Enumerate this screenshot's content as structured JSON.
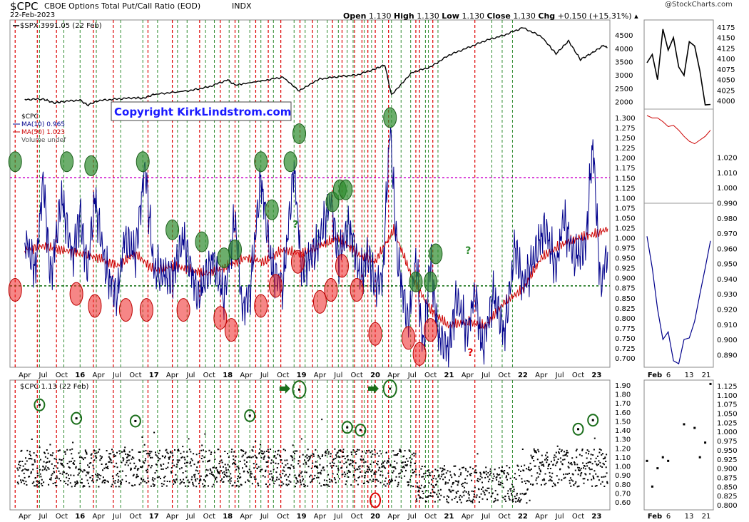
{
  "header": {
    "symbol": "$CPC",
    "description": "CBOE Options Total Put/Call Ratio (EOD)",
    "exchange": "INDX",
    "date": "22-Feb-2023",
    "credit": "@StockCharts.com",
    "open_label": "Open",
    "open": "1.130",
    "high_label": "High",
    "high": "1.130",
    "low_label": "Low",
    "low": "1.130",
    "close_label": "Close",
    "close": "1.130",
    "chg_label": "Chg",
    "chg": "+0.150 (+15.31%)"
  },
  "copyright": "Copyright KirkLindstrom.com",
  "legend": {
    "spx": "$SPX 3991.05 (22 Feb)",
    "cpc": "$CPC",
    "ma10": "MA(10) 0.965",
    "ma50": "MA(50) 1.023",
    "volume": "Volume undef",
    "scatter": "$CPC 1.13 (22 Feb)"
  },
  "colors": {
    "spx": "#000000",
    "cpc": "#00008b",
    "ma50": "#cc0000",
    "scatter": "#000000",
    "high_line": "#cc00cc",
    "low_line": "#006400",
    "green_marker": "#2e8b2e",
    "red_marker": "#ee2222",
    "copyright": "#1a1aff"
  },
  "x_ticks": [
    "Apr",
    "Jul",
    "Oct",
    "16",
    "Apr",
    "Jul",
    "Oct",
    "17",
    "Apr",
    "Jul",
    "Oct",
    "18",
    "Apr",
    "Jul",
    "Oct",
    "19",
    "Apr",
    "Jul",
    "Oct",
    "20",
    "Apr",
    "Jul",
    "Oct",
    "21",
    "Apr",
    "Jul",
    "Oct",
    "22",
    "Apr",
    "Jul",
    "Oct",
    "23"
  ],
  "side_x_ticks": [
    "Feb",
    "6",
    "13",
    "21"
  ],
  "question_marks": [
    "?",
    "?",
    "?"
  ],
  "chart_data": [
    {
      "type": "line",
      "panel": "SPX price overlay",
      "series_name": "$SPX",
      "points": [
        [
          2015.25,
          2080
        ],
        [
          2015.5,
          2100
        ],
        [
          2015.65,
          1950
        ],
        [
          2015.75,
          2000
        ],
        [
          2016.0,
          2060
        ],
        [
          2016.1,
          1870
        ],
        [
          2016.25,
          2040
        ],
        [
          2016.5,
          2100
        ],
        [
          2016.75,
          2150
        ],
        [
          2016.85,
          2120
        ],
        [
          2017.0,
          2270
        ],
        [
          2017.5,
          2420
        ],
        [
          2017.75,
          2560
        ],
        [
          2018.0,
          2820
        ],
        [
          2018.1,
          2620
        ],
        [
          2018.5,
          2800
        ],
        [
          2018.75,
          2920
        ],
        [
          2018.97,
          2400
        ],
        [
          2019.25,
          2850
        ],
        [
          2019.5,
          2940
        ],
        [
          2019.75,
          3000
        ],
        [
          2020.0,
          3230
        ],
        [
          2020.13,
          3380
        ],
        [
          2020.22,
          2240
        ],
        [
          2020.5,
          3100
        ],
        [
          2020.75,
          3300
        ],
        [
          2021.0,
          3750
        ],
        [
          2021.25,
          4020
        ],
        [
          2021.5,
          4300
        ],
        [
          2021.75,
          4500
        ],
        [
          2022.0,
          4780
        ],
        [
          2022.25,
          4450
        ],
        [
          2022.45,
          3800
        ],
        [
          2022.62,
          4280
        ],
        [
          2022.78,
          3580
        ],
        [
          2022.95,
          3850
        ],
        [
          2023.1,
          4120
        ],
        [
          2023.15,
          3991
        ]
      ],
      "y_ticks": [
        "4500",
        "4000",
        "3500",
        "3000",
        "2500",
        "2000"
      ]
    },
    {
      "type": "line",
      "panel": "Put/Call ratio with moving averages",
      "series": [
        {
          "name": "MA(10)",
          "points": [
            [
              2015.25,
              1.0
            ],
            [
              2015.4,
              0.92
            ],
            [
              2015.5,
              1.15
            ],
            [
              2015.6,
              0.9
            ],
            [
              2015.75,
              1.1
            ],
            [
              2015.9,
              0.95
            ],
            [
              2016.0,
              1.06
            ],
            [
              2016.1,
              0.92
            ],
            [
              2016.2,
              1.1
            ],
            [
              2016.35,
              0.92
            ],
            [
              2016.5,
              0.85
            ],
            [
              2016.6,
              1.0
            ],
            [
              2016.75,
              0.96
            ],
            [
              2016.88,
              1.18
            ],
            [
              2017.0,
              0.92
            ],
            [
              2017.25,
              0.9
            ],
            [
              2017.4,
              1.0
            ],
            [
              2017.6,
              0.85
            ],
            [
              2017.8,
              0.95
            ],
            [
              2017.95,
              0.85
            ],
            [
              2018.1,
              1.05
            ],
            [
              2018.2,
              0.82
            ],
            [
              2018.3,
              0.86
            ],
            [
              2018.45,
              1.15
            ],
            [
              2018.6,
              0.92
            ],
            [
              2018.75,
              0.88
            ],
            [
              2018.9,
              1.18
            ],
            [
              2019.0,
              0.92
            ],
            [
              2019.2,
              0.97
            ],
            [
              2019.4,
              1.1
            ],
            [
              2019.5,
              0.95
            ],
            [
              2019.65,
              1.03
            ],
            [
              2019.8,
              0.9
            ],
            [
              2019.9,
              0.96
            ],
            [
              2020.0,
              0.88
            ],
            [
              2020.1,
              0.9
            ],
            [
              2020.2,
              1.28
            ],
            [
              2020.3,
              0.95
            ],
            [
              2020.45,
              0.78
            ],
            [
              2020.55,
              0.95
            ],
            [
              2020.65,
              0.72
            ],
            [
              2020.75,
              0.95
            ],
            [
              2020.85,
              0.76
            ],
            [
              2021.0,
              0.72
            ],
            [
              2021.1,
              0.85
            ],
            [
              2021.25,
              0.76
            ],
            [
              2021.35,
              0.87
            ],
            [
              2021.45,
              0.72
            ],
            [
              2021.6,
              0.86
            ],
            [
              2021.75,
              0.76
            ],
            [
              2021.9,
              0.98
            ],
            [
              2022.0,
              0.88
            ],
            [
              2022.15,
              0.95
            ],
            [
              2022.3,
              1.03
            ],
            [
              2022.45,
              0.92
            ],
            [
              2022.55,
              1.05
            ],
            [
              2022.7,
              0.95
            ],
            [
              2022.85,
              0.98
            ],
            [
              2022.95,
              1.24
            ],
            [
              2023.05,
              0.88
            ],
            [
              2023.15,
              0.965
            ]
          ]
        },
        {
          "name": "MA(50)",
          "points": [
            [
              2015.25,
              0.97
            ],
            [
              2015.5,
              0.98
            ],
            [
              2015.75,
              0.97
            ],
            [
              2016.0,
              0.96
            ],
            [
              2016.25,
              0.95
            ],
            [
              2016.5,
              0.93
            ],
            [
              2016.75,
              0.96
            ],
            [
              2017.0,
              0.92
            ],
            [
              2017.25,
              0.93
            ],
            [
              2017.5,
              0.92
            ],
            [
              2017.75,
              0.91
            ],
            [
              2018.0,
              0.93
            ],
            [
              2018.25,
              0.95
            ],
            [
              2018.5,
              0.94
            ],
            [
              2018.75,
              0.97
            ],
            [
              2019.0,
              0.96
            ],
            [
              2019.25,
              0.98
            ],
            [
              2019.5,
              1.0
            ],
            [
              2019.75,
              0.96
            ],
            [
              2020.0,
              0.94
            ],
            [
              2020.25,
              1.02
            ],
            [
              2020.5,
              0.9
            ],
            [
              2020.75,
              0.82
            ],
            [
              2021.0,
              0.78
            ],
            [
              2021.25,
              0.79
            ],
            [
              2021.5,
              0.78
            ],
            [
              2021.75,
              0.84
            ],
            [
              2022.0,
              0.87
            ],
            [
              2022.25,
              0.95
            ],
            [
              2022.5,
              0.98
            ],
            [
              2022.75,
              1.0
            ],
            [
              2023.0,
              1.01
            ],
            [
              2023.15,
              1.023
            ]
          ]
        }
      ],
      "reference_lines": [
        {
          "y": 1.15,
          "style": "dotted"
        },
        {
          "y": 0.88,
          "style": "dotted"
        }
      ],
      "y_ticks": [
        "1.300",
        "1.275",
        "1.250",
        "1.225",
        "1.200",
        "1.175",
        "1.150",
        "1.125",
        "1.100",
        "1.075",
        "1.050",
        "1.025",
        "1.000",
        "0.975",
        "0.950",
        "0.925",
        "0.900",
        "0.875",
        "0.850",
        "0.825",
        "0.800",
        "0.775",
        "0.750",
        "0.725",
        "0.700"
      ],
      "ylim": [
        0.68,
        1.32
      ]
    },
    {
      "type": "scatter",
      "panel": "Daily put/call ratio",
      "series_name": "$CPC",
      "y_ticks": [
        "1.90",
        "1.80",
        "1.70",
        "1.60",
        "1.50",
        "1.40",
        "1.30",
        "1.20",
        "1.10",
        "1.00",
        "0.90",
        "0.80",
        "0.70",
        "0.60"
      ],
      "ylim": [
        0.55,
        1.95
      ],
      "circled_highs": [
        [
          2015.45,
          1.68
        ],
        [
          2015.95,
          1.53
        ],
        [
          2016.75,
          1.5
        ],
        [
          2018.3,
          1.56
        ],
        [
          2018.97,
          1.85
        ],
        [
          2019.62,
          1.43
        ],
        [
          2019.8,
          1.4
        ],
        [
          2020.2,
          1.86
        ],
        [
          2022.75,
          1.41
        ],
        [
          2022.95,
          1.51
        ]
      ],
      "circled_lows": [
        [
          2020.0,
          0.62
        ]
      ]
    },
    {
      "type": "line",
      "panel": "Side: SPX last weeks",
      "points": [
        [
          1,
          4090
        ],
        [
          2,
          4110
        ],
        [
          3,
          4050
        ],
        [
          4,
          4170
        ],
        [
          5,
          4120
        ],
        [
          6,
          4150
        ],
        [
          7,
          4080
        ],
        [
          8,
          4060
        ],
        [
          9,
          4140
        ],
        [
          10,
          4130
        ],
        [
          11,
          4070
        ],
        [
          12,
          3990
        ],
        [
          13,
          3991
        ]
      ],
      "y_ticks": [
        "4175",
        "4150",
        "4125",
        "4100",
        "4075",
        "4050",
        "4025",
        "4000"
      ]
    },
    {
      "type": "line",
      "panel": "Side: MA(50) last weeks",
      "points": [
        [
          1,
          1.035
        ],
        [
          2,
          1.033
        ],
        [
          3,
          1.033
        ],
        [
          4,
          1.03
        ],
        [
          5,
          1.026
        ],
        [
          6,
          1.027
        ],
        [
          7,
          1.023
        ],
        [
          8,
          1.018
        ],
        [
          9,
          1.014
        ],
        [
          10,
          1.012
        ],
        [
          11,
          1.015
        ],
        [
          12,
          1.018
        ],
        [
          13,
          1.023
        ]
      ],
      "y_ticks": [
        "1.020",
        "1.010",
        "1.000",
        "0.990",
        "0.980",
        "0.970",
        "0.960",
        "0.950",
        "0.940",
        "0.930",
        "0.920",
        "0.910",
        "0.900",
        "0.890"
      ]
    },
    {
      "type": "scatter",
      "panel": "Side: daily CPC last weeks",
      "points": [
        [
          1,
          0.92
        ],
        [
          2,
          0.85
        ],
        [
          3,
          0.9
        ],
        [
          4,
          0.93
        ],
        [
          5,
          0.92
        ],
        [
          8,
          1.02
        ],
        [
          10,
          1.01
        ],
        [
          11,
          0.93
        ],
        [
          12,
          0.97
        ],
        [
          13,
          1.13
        ]
      ],
      "y_ticks": [
        "1.125",
        "1.100",
        "1.075",
        "1.050",
        "1.025",
        "1.000",
        "0.975",
        "0.950",
        "0.925",
        "0.900",
        "0.875",
        "0.850",
        "0.825",
        "0.800"
      ]
    }
  ]
}
